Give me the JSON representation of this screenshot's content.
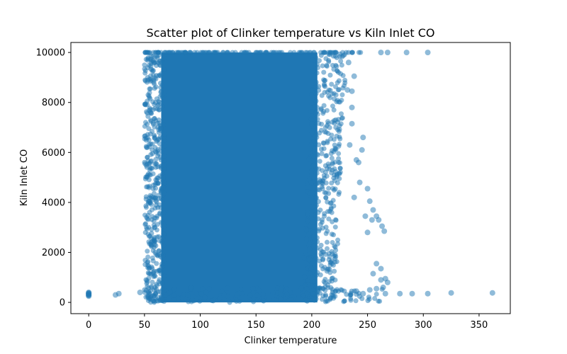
{
  "chart_data": {
    "type": "scatter",
    "title": "Scatter plot of Clinker temperature vs Kiln Inlet CO",
    "xlabel": "Clinker temperature",
    "ylabel": "Kiln Inlet CO",
    "xlim": [
      -16,
      378
    ],
    "ylim": [
      -450,
      10400
    ],
    "xticks": [
      0,
      50,
      100,
      150,
      200,
      250,
      300,
      350
    ],
    "yticks": [
      0,
      2000,
      4000,
      6000,
      8000,
      10000
    ],
    "grid": false,
    "marker_color": "#1f77b4",
    "marker_alpha": 0.5,
    "dense_region": {
      "x_range": [
        50,
        235
      ],
      "y_range": [
        0,
        10000
      ],
      "ceiling_y": 10000
    },
    "series": [
      {
        "points": [
          [
            0,
            250
          ],
          [
            0,
            280
          ],
          [
            0,
            300
          ],
          [
            0,
            320
          ],
          [
            0,
            340
          ],
          [
            0,
            360
          ],
          [
            0,
            380
          ],
          [
            0,
            400
          ],
          [
            24,
            300
          ],
          [
            27,
            350
          ],
          [
            46,
            400
          ],
          [
            262,
            10000
          ],
          [
            268,
            10000
          ],
          [
            285,
            10000
          ],
          [
            304,
            10000
          ],
          [
            238,
            9050
          ],
          [
            236,
            8450
          ],
          [
            236,
            7150
          ],
          [
            245,
            6100
          ],
          [
            250,
            4550
          ],
          [
            252,
            4050
          ],
          [
            255,
            3700
          ],
          [
            254,
            3300
          ],
          [
            260,
            3300
          ],
          [
            263,
            3050
          ],
          [
            265,
            2850
          ],
          [
            250,
            2800
          ],
          [
            248,
            3450
          ],
          [
            258,
            3450
          ],
          [
            258,
            1550
          ],
          [
            262,
            1350
          ],
          [
            255,
            1150
          ],
          [
            262,
            900
          ],
          [
            266,
            950
          ],
          [
            268,
            800
          ],
          [
            264,
            600
          ],
          [
            266,
            350
          ],
          [
            279,
            350
          ],
          [
            290,
            350
          ],
          [
            304,
            350
          ],
          [
            325,
            380
          ],
          [
            362,
            380
          ],
          [
            252,
            500
          ],
          [
            258,
            550
          ],
          [
            246,
            350
          ],
          [
            240,
            450
          ],
          [
            234,
            6300
          ],
          [
            240,
            5700
          ],
          [
            232,
            8500
          ],
          [
            246,
            6600
          ],
          [
            243,
            4800
          ],
          [
            238,
            4200
          ],
          [
            242,
            5600
          ],
          [
            236,
            7800
          ],
          [
            233,
            9600
          ]
        ]
      }
    ]
  }
}
